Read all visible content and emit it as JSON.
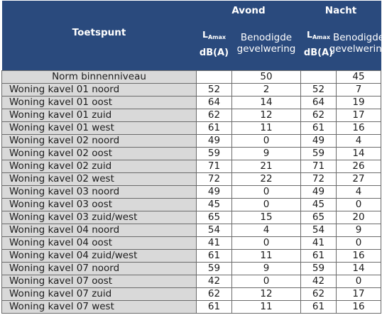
{
  "header": {
    "toetspunt": "Toetspunt",
    "avond": "Avond",
    "nacht": "Nacht",
    "lamax_main": "L",
    "lamax_sub": "Amax",
    "unit": "dB(A)",
    "gevel_line1": "Benodigde",
    "gevel_line2": "gevelwering"
  },
  "norm": {
    "label": "Norm binnenniveau",
    "avond": "50",
    "nacht": "45"
  },
  "rows": [
    {
      "label": "Woning kavel 01 noord",
      "a_lamax": "52",
      "a_gevel": "2",
      "n_lamax": "52",
      "n_gevel": "7"
    },
    {
      "label": "Woning kavel 01 oost",
      "a_lamax": "64",
      "a_gevel": "14",
      "n_lamax": "64",
      "n_gevel": "19"
    },
    {
      "label": "Woning kavel 01 zuid",
      "a_lamax": "62",
      "a_gevel": "12",
      "n_lamax": "62",
      "n_gevel": "17"
    },
    {
      "label": "Woning kavel 01 west",
      "a_lamax": "61",
      "a_gevel": "11",
      "n_lamax": "61",
      "n_gevel": "16"
    },
    {
      "label": "Woning kavel 02 noord",
      "a_lamax": "49",
      "a_gevel": "0",
      "n_lamax": "49",
      "n_gevel": "4"
    },
    {
      "label": "Woning kavel 02 oost",
      "a_lamax": "59",
      "a_gevel": "9",
      "n_lamax": "59",
      "n_gevel": "14"
    },
    {
      "label": "Woning kavel 02 zuid",
      "a_lamax": "71",
      "a_gevel": "21",
      "n_lamax": "71",
      "n_gevel": "26"
    },
    {
      "label": "Woning kavel 02 west",
      "a_lamax": "72",
      "a_gevel": "22",
      "n_lamax": "72",
      "n_gevel": "27"
    },
    {
      "label": "Woning kavel 03 noord",
      "a_lamax": "49",
      "a_gevel": "0",
      "n_lamax": "49",
      "n_gevel": "4"
    },
    {
      "label": "Woning kavel 03 oost",
      "a_lamax": "45",
      "a_gevel": "0",
      "n_lamax": "45",
      "n_gevel": "0"
    },
    {
      "label": "Woning kavel 03 zuid/west",
      "a_lamax": "65",
      "a_gevel": "15",
      "n_lamax": "65",
      "n_gevel": "20"
    },
    {
      "label": "Woning kavel 04 noord",
      "a_lamax": "54",
      "a_gevel": "4",
      "n_lamax": "54",
      "n_gevel": "9"
    },
    {
      "label": "Woning kavel 04 oost",
      "a_lamax": "41",
      "a_gevel": "0",
      "n_lamax": "41",
      "n_gevel": "0"
    },
    {
      "label": "Woning kavel 04 zuid/west",
      "a_lamax": "61",
      "a_gevel": "11",
      "n_lamax": "61",
      "n_gevel": "16"
    },
    {
      "label": "Woning kavel 07 noord",
      "a_lamax": "59",
      "a_gevel": "9",
      "n_lamax": "59",
      "n_gevel": "14"
    },
    {
      "label": "Woning kavel 07 oost",
      "a_lamax": "42",
      "a_gevel": "0",
      "n_lamax": "42",
      "n_gevel": "0"
    },
    {
      "label": "Woning kavel 07 zuid",
      "a_lamax": "62",
      "a_gevel": "12",
      "n_lamax": "62",
      "n_gevel": "17"
    },
    {
      "label": "Woning kavel 07 west",
      "a_lamax": "61",
      "a_gevel": "11",
      "n_lamax": "61",
      "n_gevel": "16"
    }
  ],
  "colors": {
    "header_bg": "#2a4a7d",
    "label_bg": "#d9d9d9",
    "border": "#6b6b6b"
  }
}
